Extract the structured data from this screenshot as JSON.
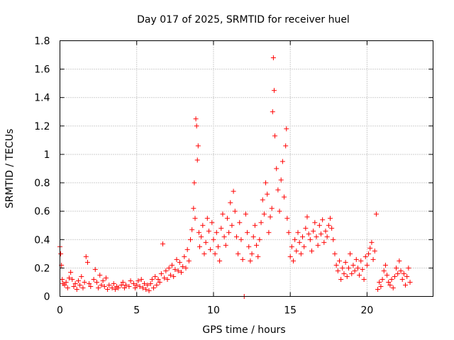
{
  "chart_data": {
    "type": "scatter",
    "title": "Day 017 of 2025, SRMTID for receiver huel",
    "xlabel": "GPS time / hours",
    "ylabel": "SRMTID / TECUs",
    "xlim": [
      0,
      24.3
    ],
    "ylim": [
      0,
      1.8
    ],
    "xticks": [
      0,
      5,
      10,
      15,
      20
    ],
    "xtick_labels": [
      "0",
      "5",
      "10",
      "15",
      "20"
    ],
    "yticks": [
      0,
      0.2,
      0.4,
      0.6,
      0.8,
      1.0,
      1.2,
      1.4,
      1.6,
      1.8
    ],
    "ytick_labels": [
      "0",
      "0.2",
      "0.4",
      "0.6",
      "0.8",
      "1",
      "1.2",
      "1.4",
      "1.6",
      "1.8"
    ],
    "grid": true,
    "marker": "+",
    "color": "#ff0000",
    "series": [
      {
        "name": "SRMTID",
        "points": [
          [
            0.0,
            0.35
          ],
          [
            0.05,
            0.3
          ],
          [
            0.1,
            0.22
          ],
          [
            0.15,
            0.12
          ],
          [
            0.2,
            0.09
          ],
          [
            0.3,
            0.08
          ],
          [
            0.4,
            0.1
          ],
          [
            0.5,
            0.06
          ],
          [
            0.6,
            0.13
          ],
          [
            0.7,
            0.17
          ],
          [
            0.8,
            0.12
          ],
          [
            0.9,
            0.07
          ],
          [
            1.0,
            0.09
          ],
          [
            1.1,
            0.05
          ],
          [
            1.2,
            0.11
          ],
          [
            1.3,
            0.08
          ],
          [
            1.4,
            0.14
          ],
          [
            1.5,
            0.06
          ],
          [
            1.6,
            0.1
          ],
          [
            1.7,
            0.28
          ],
          [
            1.8,
            0.24
          ],
          [
            1.9,
            0.09
          ],
          [
            2.0,
            0.07
          ],
          [
            2.2,
            0.12
          ],
          [
            2.3,
            0.19
          ],
          [
            2.4,
            0.1
          ],
          [
            2.5,
            0.06
          ],
          [
            2.6,
            0.15
          ],
          [
            2.7,
            0.08
          ],
          [
            2.8,
            0.11
          ],
          [
            2.9,
            0.07
          ],
          [
            3.0,
            0.13
          ],
          [
            3.1,
            0.05
          ],
          [
            3.2,
            0.08
          ],
          [
            3.4,
            0.06
          ],
          [
            3.5,
            0.09
          ],
          [
            3.6,
            0.05
          ],
          [
            3.7,
            0.07
          ],
          [
            3.8,
            0.06
          ],
          [
            4.0,
            0.08
          ],
          [
            4.1,
            0.1
          ],
          [
            4.2,
            0.06
          ],
          [
            4.3,
            0.08
          ],
          [
            4.5,
            0.07
          ],
          [
            4.6,
            0.11
          ],
          [
            4.8,
            0.09
          ],
          [
            4.9,
            0.06
          ],
          [
            5.0,
            0.08
          ],
          [
            5.1,
            0.11
          ],
          [
            5.2,
            0.07
          ],
          [
            5.3,
            0.12
          ],
          [
            5.4,
            0.06
          ],
          [
            5.5,
            0.09
          ],
          [
            5.6,
            0.05
          ],
          [
            5.7,
            0.08
          ],
          [
            5.8,
            0.04
          ],
          [
            5.9,
            0.09
          ],
          [
            6.0,
            0.12
          ],
          [
            6.1,
            0.06
          ],
          [
            6.2,
            0.14
          ],
          [
            6.3,
            0.08
          ],
          [
            6.4,
            0.12
          ],
          [
            6.5,
            0.1
          ],
          [
            6.6,
            0.16
          ],
          [
            6.7,
            0.37
          ],
          [
            6.8,
            0.13
          ],
          [
            6.9,
            0.18
          ],
          [
            7.0,
            0.12
          ],
          [
            7.1,
            0.2
          ],
          [
            7.2,
            0.15
          ],
          [
            7.3,
            0.22
          ],
          [
            7.4,
            0.14
          ],
          [
            7.5,
            0.19
          ],
          [
            7.6,
            0.26
          ],
          [
            7.7,
            0.18
          ],
          [
            7.8,
            0.24
          ],
          [
            7.9,
            0.17
          ],
          [
            8.0,
            0.21
          ],
          [
            8.1,
            0.28
          ],
          [
            8.2,
            0.2
          ],
          [
            8.3,
            0.33
          ],
          [
            8.4,
            0.25
          ],
          [
            8.5,
            0.4
          ],
          [
            8.6,
            0.47
          ],
          [
            8.7,
            0.62
          ],
          [
            8.75,
            0.8
          ],
          [
            8.8,
            0.55
          ],
          [
            8.85,
            1.25
          ],
          [
            8.9,
            1.2
          ],
          [
            8.95,
            0.96
          ],
          [
            9.0,
            1.06
          ],
          [
            9.05,
            0.45
          ],
          [
            9.1,
            0.35
          ],
          [
            9.2,
            0.42
          ],
          [
            9.3,
            0.5
          ],
          [
            9.4,
            0.3
          ],
          [
            9.5,
            0.38
          ],
          [
            9.6,
            0.55
          ],
          [
            9.7,
            0.46
          ],
          [
            9.8,
            0.33
          ],
          [
            9.9,
            0.52
          ],
          [
            10.0,
            0.4
          ],
          [
            10.1,
            0.3
          ],
          [
            10.2,
            0.45
          ],
          [
            10.3,
            0.35
          ],
          [
            10.4,
            0.25
          ],
          [
            10.5,
            0.48
          ],
          [
            10.6,
            0.58
          ],
          [
            10.7,
            0.42
          ],
          [
            10.8,
            0.36
          ],
          [
            10.9,
            0.55
          ],
          [
            11.0,
            0.45
          ],
          [
            11.1,
            0.66
          ],
          [
            11.2,
            0.5
          ],
          [
            11.3,
            0.74
          ],
          [
            11.4,
            0.6
          ],
          [
            11.5,
            0.42
          ],
          [
            11.6,
            0.3
          ],
          [
            11.7,
            0.52
          ],
          [
            11.8,
            0.4
          ],
          [
            11.9,
            0.26
          ],
          [
            12.0,
            0.0
          ],
          [
            12.1,
            0.58
          ],
          [
            12.2,
            0.45
          ],
          [
            12.3,
            0.35
          ],
          [
            12.4,
            0.25
          ],
          [
            12.5,
            0.3
          ],
          [
            12.6,
            0.42
          ],
          [
            12.7,
            0.5
          ],
          [
            12.8,
            0.36
          ],
          [
            12.9,
            0.28
          ],
          [
            13.0,
            0.4
          ],
          [
            13.1,
            0.52
          ],
          [
            13.2,
            0.68
          ],
          [
            13.3,
            0.58
          ],
          [
            13.4,
            0.8
          ],
          [
            13.5,
            0.72
          ],
          [
            13.6,
            0.45
          ],
          [
            13.7,
            0.56
          ],
          [
            13.8,
            0.62
          ],
          [
            13.85,
            1.3
          ],
          [
            13.9,
            1.68
          ],
          [
            13.95,
            1.45
          ],
          [
            14.0,
            1.13
          ],
          [
            14.1,
            0.9
          ],
          [
            14.2,
            0.75
          ],
          [
            14.3,
            0.6
          ],
          [
            14.4,
            0.82
          ],
          [
            14.5,
            0.95
          ],
          [
            14.6,
            0.7
          ],
          [
            14.7,
            1.06
          ],
          [
            14.75,
            1.18
          ],
          [
            14.8,
            0.55
          ],
          [
            14.9,
            0.45
          ],
          [
            15.0,
            0.28
          ],
          [
            15.1,
            0.35
          ],
          [
            15.2,
            0.25
          ],
          [
            15.3,
            0.4
          ],
          [
            15.4,
            0.32
          ],
          [
            15.5,
            0.45
          ],
          [
            15.6,
            0.38
          ],
          [
            15.7,
            0.3
          ],
          [
            15.8,
            0.42
          ],
          [
            15.9,
            0.35
          ],
          [
            16.0,
            0.48
          ],
          [
            16.1,
            0.56
          ],
          [
            16.2,
            0.44
          ],
          [
            16.3,
            0.4
          ],
          [
            16.4,
            0.32
          ],
          [
            16.5,
            0.46
          ],
          [
            16.6,
            0.52
          ],
          [
            16.7,
            0.42
          ],
          [
            16.8,
            0.36
          ],
          [
            16.9,
            0.5
          ],
          [
            17.0,
            0.44
          ],
          [
            17.1,
            0.54
          ],
          [
            17.2,
            0.38
          ],
          [
            17.3,
            0.46
          ],
          [
            17.4,
            0.42
          ],
          [
            17.5,
            0.5
          ],
          [
            17.6,
            0.55
          ],
          [
            17.7,
            0.48
          ],
          [
            17.8,
            0.4
          ],
          [
            17.9,
            0.3
          ],
          [
            18.0,
            0.22
          ],
          [
            18.1,
            0.18
          ],
          [
            18.2,
            0.25
          ],
          [
            18.3,
            0.12
          ],
          [
            18.4,
            0.2
          ],
          [
            18.5,
            0.16
          ],
          [
            18.6,
            0.24
          ],
          [
            18.7,
            0.14
          ],
          [
            18.8,
            0.2
          ],
          [
            18.9,
            0.3
          ],
          [
            19.0,
            0.16
          ],
          [
            19.1,
            0.22
          ],
          [
            19.2,
            0.18
          ],
          [
            19.3,
            0.26
          ],
          [
            19.4,
            0.2
          ],
          [
            19.5,
            0.15
          ],
          [
            19.6,
            0.25
          ],
          [
            19.7,
            0.19
          ],
          [
            19.8,
            0.12
          ],
          [
            19.9,
            0.28
          ],
          [
            20.0,
            0.22
          ],
          [
            20.1,
            0.3
          ],
          [
            20.2,
            0.34
          ],
          [
            20.3,
            0.38
          ],
          [
            20.4,
            0.26
          ],
          [
            20.5,
            0.32
          ],
          [
            20.6,
            0.58
          ],
          [
            20.7,
            0.05
          ],
          [
            20.8,
            0.1
          ],
          [
            20.9,
            0.07
          ],
          [
            21.0,
            0.12
          ],
          [
            21.1,
            0.18
          ],
          [
            21.2,
            0.22
          ],
          [
            21.3,
            0.15
          ],
          [
            21.4,
            0.1
          ],
          [
            21.5,
            0.08
          ],
          [
            21.6,
            0.12
          ],
          [
            21.7,
            0.06
          ],
          [
            21.8,
            0.14
          ],
          [
            21.9,
            0.2
          ],
          [
            22.0,
            0.16
          ],
          [
            22.1,
            0.25
          ],
          [
            22.2,
            0.18
          ],
          [
            22.3,
            0.12
          ],
          [
            22.4,
            0.16
          ],
          [
            22.5,
            0.08
          ],
          [
            22.6,
            0.14
          ],
          [
            22.7,
            0.2
          ],
          [
            22.8,
            0.1
          ]
        ]
      }
    ]
  }
}
